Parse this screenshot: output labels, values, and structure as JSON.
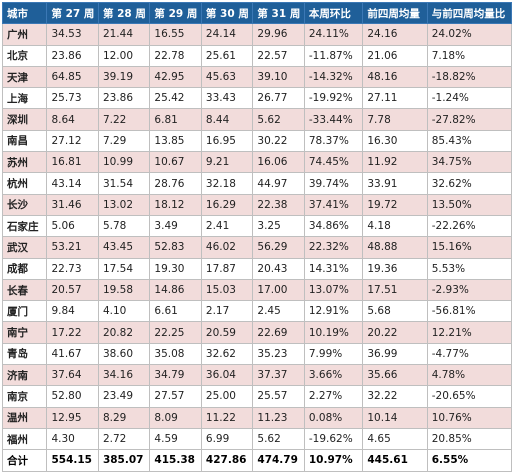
{
  "headers": [
    "城市",
    "第 27 周",
    "第 28 周",
    "第 29 周",
    "第 30 周",
    "第 31 周",
    "本周环比",
    "前四周均量",
    "与前四周均量比"
  ],
  "rows": [
    {
      "city": "广州",
      "w27": "34.53",
      "w28": "21.44",
      "w29": "16.55",
      "w30": "24.14",
      "w31": "29.96",
      "wow": "24.11%",
      "avg4": "24.16",
      "vs_avg": "24.02%"
    },
    {
      "city": "北京",
      "w27": "23.86",
      "w28": "12.00",
      "w29": "22.78",
      "w30": "25.61",
      "w31": "22.57",
      "wow": "-11.87%",
      "avg4": "21.06",
      "vs_avg": "7.18%"
    },
    {
      "city": "天津",
      "w27": "64.85",
      "w28": "39.19",
      "w29": "42.95",
      "w30": "45.63",
      "w31": "39.10",
      "wow": "-14.32%",
      "avg4": "48.16",
      "vs_avg": "-18.82%"
    },
    {
      "city": "上海",
      "w27": "25.73",
      "w28": "23.86",
      "w29": "25.42",
      "w30": "33.43",
      "w31": "26.77",
      "wow": "-19.92%",
      "avg4": "27.11",
      "vs_avg": "-1.24%"
    },
    {
      "city": "深圳",
      "w27": "8.64",
      "w28": "7.22",
      "w29": "6.81",
      "w30": "8.44",
      "w31": "5.62",
      "wow": "-33.44%",
      "avg4": "7.78",
      "vs_avg": "-27.82%"
    },
    {
      "city": "南昌",
      "w27": "27.12",
      "w28": "7.29",
      "w29": "13.85",
      "w30": "16.95",
      "w31": "30.22",
      "wow": "78.37%",
      "avg4": "16.30",
      "vs_avg": "85.43%"
    },
    {
      "city": "苏州",
      "w27": "16.81",
      "w28": "10.99",
      "w29": "10.67",
      "w30": "9.21",
      "w31": "16.06",
      "wow": "74.45%",
      "avg4": "11.92",
      "vs_avg": "34.75%"
    },
    {
      "city": "杭州",
      "w27": "43.14",
      "w28": "31.54",
      "w29": "28.76",
      "w30": "32.18",
      "w31": "44.97",
      "wow": "39.74%",
      "avg4": "33.91",
      "vs_avg": "32.62%"
    },
    {
      "city": "长沙",
      "w27": "31.46",
      "w28": "13.02",
      "w29": "18.12",
      "w30": "16.29",
      "w31": "22.38",
      "wow": "37.41%",
      "avg4": "19.72",
      "vs_avg": "13.50%"
    },
    {
      "city": "石家庄",
      "w27": "5.06",
      "w28": "5.78",
      "w29": "3.49",
      "w30": "2.41",
      "w31": "3.25",
      "wow": "34.86%",
      "avg4": "4.18",
      "vs_avg": "-22.26%"
    },
    {
      "city": "武汉",
      "w27": "53.21",
      "w28": "43.45",
      "w29": "52.83",
      "w30": "46.02",
      "w31": "56.29",
      "wow": "22.32%",
      "avg4": "48.88",
      "vs_avg": "15.16%"
    },
    {
      "city": "成都",
      "w27": "22.73",
      "w28": "17.54",
      "w29": "19.30",
      "w30": "17.87",
      "w31": "20.43",
      "wow": "14.31%",
      "avg4": "19.36",
      "vs_avg": "5.53%"
    },
    {
      "city": "长春",
      "w27": "20.57",
      "w28": "19.58",
      "w29": "14.86",
      "w30": "15.03",
      "w31": "17.00",
      "wow": "13.07%",
      "avg4": "17.51",
      "vs_avg": "-2.93%"
    },
    {
      "city": "厦门",
      "w27": "9.84",
      "w28": "4.10",
      "w29": "6.61",
      "w30": "2.17",
      "w31": "2.45",
      "wow": "12.91%",
      "avg4": "5.68",
      "vs_avg": "-56.81%"
    },
    {
      "city": "南宁",
      "w27": "17.22",
      "w28": "20.82",
      "w29": "22.25",
      "w30": "20.59",
      "w31": "22.69",
      "wow": "10.19%",
      "avg4": "20.22",
      "vs_avg": "12.21%"
    },
    {
      "city": "青岛",
      "w27": "41.67",
      "w28": "38.60",
      "w29": "35.08",
      "w30": "32.62",
      "w31": "35.23",
      "wow": "7.99%",
      "avg4": "36.99",
      "vs_avg": "-4.77%"
    },
    {
      "city": "济南",
      "w27": "37.64",
      "w28": "34.16",
      "w29": "34.79",
      "w30": "36.04",
      "w31": "37.37",
      "wow": "3.66%",
      "avg4": "35.66",
      "vs_avg": "4.78%"
    },
    {
      "city": "南京",
      "w27": "52.80",
      "w28": "23.49",
      "w29": "27.57",
      "w30": "25.00",
      "w31": "25.57",
      "wow": "2.27%",
      "avg4": "32.22",
      "vs_avg": "-20.65%"
    },
    {
      "city": "温州",
      "w27": "12.95",
      "w28": "8.29",
      "w29": "8.09",
      "w30": "11.22",
      "w31": "11.23",
      "wow": "0.08%",
      "avg4": "10.14",
      "vs_avg": "10.76%"
    },
    {
      "city": "福州",
      "w27": "4.30",
      "w28": "2.72",
      "w29": "4.59",
      "w30": "6.99",
      "w31": "5.62",
      "wow": "-19.62%",
      "avg4": "4.65",
      "vs_avg": "20.85%"
    }
  ],
  "total": {
    "city": "合计",
    "w27": "554.15",
    "w28": "385.07",
    "w29": "415.38",
    "w30": "427.86",
    "w31": "474.79",
    "wow": "10.97%",
    "avg4": "445.61",
    "vs_avg": "6.55%"
  },
  "colors": {
    "header_bg": "#1f5f99",
    "pink_row": "#f2dcdb",
    "positive": "#ff0000",
    "negative": "#00a050"
  }
}
